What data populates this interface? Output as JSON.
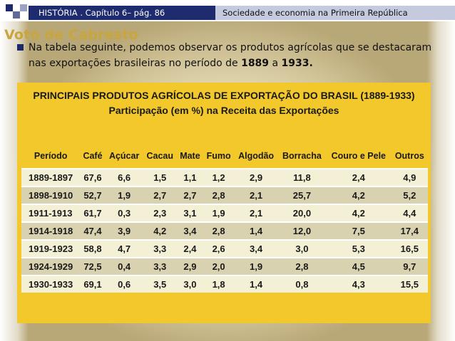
{
  "header": {
    "left_text": "HISTÓRIA . Capítulo 6– pág.   86",
    "right_text": "Sociedade e economia na Primeira República"
  },
  "slide": {
    "title": "Voto de Cabresto",
    "paragraph_prefix": "Na tabela seguinte, podemos observar os produtos agrícolas que se destacaram nas exportações brasileiras no período de ",
    "year_start": "1889",
    "connector": " a ",
    "year_end": "1933."
  },
  "table": {
    "title": "PRINCIPAIS PRODUTOS AGRÍCOLAS DE EXPORTAÇÃO DO BRASIL (1889-1933)",
    "subtitle": "Participação (em %) na Receita das Exportações",
    "columns": [
      "Período",
      "Café",
      "Açúcar",
      "Cacau",
      "Mate",
      "Fumo",
      "Algodão",
      "Borracha",
      "Couro e Pele",
      "Outros"
    ],
    "rows": [
      [
        "1889-1897",
        "67,6",
        "6,6",
        "1,5",
        "1,1",
        "1,2",
        "2,9",
        "11,8",
        "2,4",
        "4,9"
      ],
      [
        "1898-1910",
        "52,7",
        "1,9",
        "2,7",
        "2,7",
        "2,8",
        "2,1",
        "25,7",
        "4,2",
        "5,2"
      ],
      [
        "1911-1913",
        "61,7",
        "0,3",
        "2,3",
        "3,1",
        "1,9",
        "2,1",
        "20,0",
        "4,2",
        "4,4"
      ],
      [
        "1914-1918",
        "47,4",
        "3,9",
        "4,2",
        "3,4",
        "2,8",
        "1,4",
        "12,0",
        "7,5",
        "17,4"
      ],
      [
        "1919-1923",
        "58,8",
        "4,7",
        "3,3",
        "2,4",
        "2,6",
        "3,4",
        "3,0",
        "5,3",
        "16,5"
      ],
      [
        "1924-1929",
        "72,5",
        "0,4",
        "3,3",
        "2,9",
        "2,0",
        "1,9",
        "2,8",
        "4,5",
        "9,7"
      ],
      [
        "1930-1933",
        "69,1",
        "0,6",
        "3,5",
        "3,0",
        "1,8",
        "1,4",
        "0,8",
        "4,3",
        "15,5"
      ]
    ]
  },
  "colors": {
    "header_dark": "#1e2b6e",
    "header_light": "#c5cadf",
    "title_gold": "#c9a53a",
    "table_yellow": "#f2c82b"
  }
}
